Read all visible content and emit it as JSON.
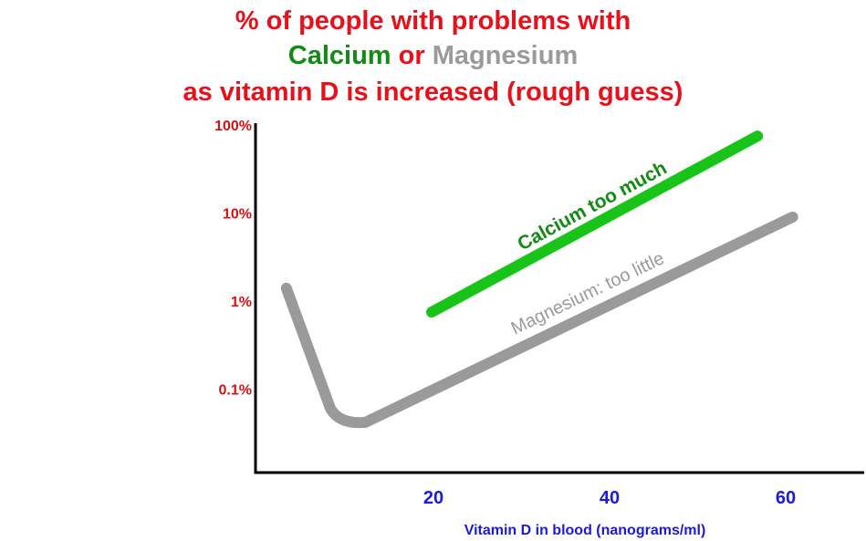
{
  "title": {
    "line1": "% of people with problems with",
    "line2_part1": "Calcium",
    "line2_part2": " or ",
    "line2_part3": "Magnesium",
    "line3": "as vitamin D is increased (rough guess)"
  },
  "colors": {
    "title_red": "#e8101a",
    "calcium_green": "#18c418",
    "calcium_label_green": "#138a13",
    "magnesium_gray": "#9a9a9a",
    "axis_blue": "#1a1ad8",
    "y_tick_red": "#d81010",
    "axis_black": "#000000"
  },
  "chart_data": {
    "type": "line",
    "title": "% of people with problems with Calcium or Magnesium as vitamin D is increased (rough guess)",
    "xlabel": "Vitamin D in blood (nanograms/ml)",
    "ylabel": "",
    "x_ticks": [
      20,
      40,
      60
    ],
    "xlim": [
      0,
      70
    ],
    "yscale": "log",
    "y_ticks": [
      {
        "value": 0.1,
        "label": "0.1%"
      },
      {
        "value": 1,
        "label": "1%"
      },
      {
        "value": 10,
        "label": "10%"
      },
      {
        "value": 100,
        "label": "100%"
      }
    ],
    "ylim": [
      0.01,
      100
    ],
    "grid": false,
    "legend": "none",
    "series": [
      {
        "name": "Calcium too much",
        "color": "#18c418",
        "points": [
          [
            20,
            0.75
          ],
          [
            57,
            75
          ]
        ]
      },
      {
        "name": "Magnesium: too little",
        "color": "#9a9a9a",
        "points": [
          [
            3.5,
            1.4
          ],
          [
            8.5,
            0.05
          ],
          [
            12.5,
            0.042
          ],
          [
            61,
            9
          ]
        ]
      }
    ]
  }
}
